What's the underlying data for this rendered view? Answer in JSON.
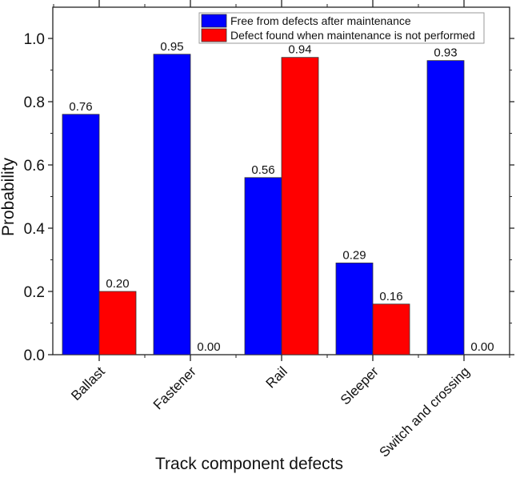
{
  "chart_data": {
    "type": "bar",
    "xlabel": "Track component defects",
    "ylabel": "Probability",
    "ylim": [
      0,
      1.1
    ],
    "yticks": [
      "0.0",
      "0.2",
      "0.4",
      "0.6",
      "0.8",
      "1.0"
    ],
    "categories": [
      "Ballast",
      "Fastener",
      "Rail",
      "Sleeper",
      "Switch and crossing"
    ],
    "series": [
      {
        "name": "Free from defects after maintenance",
        "color": "#0000ff",
        "values": [
          0.76,
          0.95,
          0.56,
          0.29,
          0.93
        ],
        "labels": [
          "0.76",
          "0.95",
          "0.56",
          "0.29",
          "0.93"
        ]
      },
      {
        "name": "Defect found when maintenance is not performed",
        "color": "#ff0000",
        "values": [
          0.2,
          0.0,
          0.94,
          0.16,
          0.0
        ],
        "labels": [
          "0.20",
          "0.00",
          "0.94",
          "0.16",
          "0.00"
        ]
      }
    ],
    "legend_position": "top-right",
    "grid": false
  }
}
